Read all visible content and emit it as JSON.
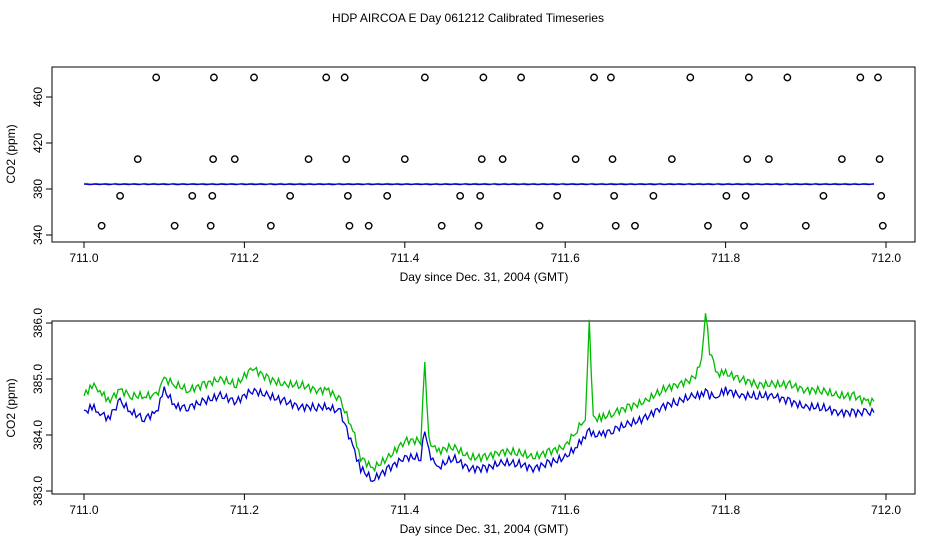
{
  "figure": {
    "title": "HDP AIRCOA E  Day 061212  Calibrated Timeseries"
  },
  "chart_data": [
    {
      "type": "scatter",
      "title": "",
      "xlabel": "Day since Dec. 31, 2004 (GMT)",
      "ylabel": "CO2 (ppm)",
      "xlim": [
        711.0,
        712.0
      ],
      "ylim": [
        340,
        480
      ],
      "x_ticks": [
        "711.0",
        "711.2",
        "711.4",
        "711.6",
        "711.8",
        "712.0"
      ],
      "y_ticks": [
        "340",
        "380",
        "420",
        "460"
      ],
      "grid": false,
      "points": [
        {
          "x": 711.022,
          "y": 348
        },
        {
          "x": 711.045,
          "y": 374
        },
        {
          "x": 711.067,
          "y": 406
        },
        {
          "x": 711.09,
          "y": 477
        },
        {
          "x": 711.113,
          "y": 348
        },
        {
          "x": 711.135,
          "y": 374
        },
        {
          "x": 711.158,
          "y": 348
        },
        {
          "x": 711.16,
          "y": 374
        },
        {
          "x": 711.161,
          "y": 406
        },
        {
          "x": 711.162,
          "y": 477
        },
        {
          "x": 711.188,
          "y": 406
        },
        {
          "x": 711.212,
          "y": 477
        },
        {
          "x": 711.233,
          "y": 348
        },
        {
          "x": 711.257,
          "y": 374
        },
        {
          "x": 711.28,
          "y": 406
        },
        {
          "x": 711.302,
          "y": 477
        },
        {
          "x": 711.325,
          "y": 477
        },
        {
          "x": 711.327,
          "y": 406
        },
        {
          "x": 711.329,
          "y": 374
        },
        {
          "x": 711.331,
          "y": 348
        },
        {
          "x": 711.355,
          "y": 348
        },
        {
          "x": 711.378,
          "y": 374
        },
        {
          "x": 711.4,
          "y": 406
        },
        {
          "x": 711.425,
          "y": 477
        },
        {
          "x": 711.446,
          "y": 348
        },
        {
          "x": 711.469,
          "y": 374
        },
        {
          "x": 711.492,
          "y": 348
        },
        {
          "x": 711.494,
          "y": 374
        },
        {
          "x": 711.496,
          "y": 406
        },
        {
          "x": 711.498,
          "y": 477
        },
        {
          "x": 711.522,
          "y": 406
        },
        {
          "x": 711.545,
          "y": 477
        },
        {
          "x": 711.568,
          "y": 348
        },
        {
          "x": 711.59,
          "y": 374
        },
        {
          "x": 711.613,
          "y": 406
        },
        {
          "x": 711.636,
          "y": 477
        },
        {
          "x": 711.657,
          "y": 477
        },
        {
          "x": 711.659,
          "y": 406
        },
        {
          "x": 711.661,
          "y": 374
        },
        {
          "x": 711.663,
          "y": 348
        },
        {
          "x": 711.687,
          "y": 348
        },
        {
          "x": 711.71,
          "y": 374
        },
        {
          "x": 711.733,
          "y": 406
        },
        {
          "x": 711.756,
          "y": 477
        },
        {
          "x": 711.778,
          "y": 348
        },
        {
          "x": 711.801,
          "y": 374
        },
        {
          "x": 711.823,
          "y": 348
        },
        {
          "x": 711.825,
          "y": 374
        },
        {
          "x": 711.827,
          "y": 406
        },
        {
          "x": 711.829,
          "y": 477
        },
        {
          "x": 711.854,
          "y": 406
        },
        {
          "x": 711.877,
          "y": 477
        },
        {
          "x": 711.9,
          "y": 348
        },
        {
          "x": 711.922,
          "y": 374
        },
        {
          "x": 711.945,
          "y": 406
        },
        {
          "x": 711.968,
          "y": 477
        },
        {
          "x": 711.99,
          "y": 477
        },
        {
          "x": 711.992,
          "y": 406
        },
        {
          "x": 711.994,
          "y": 374
        },
        {
          "x": 711.996,
          "y": 348
        }
      ],
      "series": [
        {
          "color": "#00bb00",
          "values_description": "near 384.5 ppm across the day"
        },
        {
          "color": "#0000cc",
          "values_description": "near 384.0 ppm across the day"
        }
      ],
      "series_level": {
        "green": 384.6,
        "blue": 384.0,
        "x_range": [
          711.0,
          711.985
        ]
      }
    },
    {
      "type": "line",
      "title": "",
      "xlabel": "Day since Dec. 31, 2004 (GMT)",
      "ylabel": "CO2 (ppm)",
      "xlim": [
        711.0,
        712.0
      ],
      "ylim": [
        382.9,
        386.3
      ],
      "x_ticks": [
        "711.0",
        "711.2",
        "711.4",
        "711.6",
        "711.8",
        "712.0"
      ],
      "y_ticks": [
        "383.0",
        "384.0",
        "385.0",
        "386.0"
      ],
      "grid": false,
      "series": [
        {
          "color": "#00bb00",
          "x": [
            711.0,
            711.01,
            711.02,
            711.03,
            711.045,
            711.06,
            711.075,
            711.09,
            711.1,
            711.115,
            711.13,
            711.15,
            711.17,
            711.19,
            711.21,
            711.23,
            711.25,
            711.27,
            711.29,
            711.305,
            711.32,
            711.335,
            711.345,
            711.36,
            711.38,
            711.4,
            711.42,
            711.425,
            711.43,
            711.44,
            711.46,
            711.48,
            711.5,
            711.52,
            711.54,
            711.56,
            711.58,
            711.6,
            711.615,
            711.625,
            711.63,
            711.635,
            711.645,
            711.66,
            711.68,
            711.7,
            711.72,
            711.74,
            711.76,
            711.77,
            711.775,
            711.78,
            711.79,
            711.8,
            711.82,
            711.84,
            711.86,
            711.88,
            711.9,
            711.92,
            711.94,
            711.96,
            711.975,
            711.985
          ],
          "values": [
            384.7,
            384.9,
            384.8,
            384.6,
            384.8,
            384.7,
            384.7,
            384.7,
            385.0,
            384.9,
            384.8,
            384.9,
            385.0,
            384.9,
            385.2,
            385.0,
            384.9,
            384.9,
            384.8,
            384.8,
            384.6,
            384.1,
            383.6,
            383.4,
            383.6,
            383.9,
            383.9,
            385.3,
            383.9,
            383.7,
            383.8,
            383.6,
            383.6,
            383.7,
            383.7,
            383.6,
            383.7,
            383.8,
            384.1,
            384.3,
            386.0,
            384.3,
            384.3,
            384.4,
            384.5,
            384.6,
            384.8,
            384.9,
            385.0,
            385.3,
            386.2,
            385.5,
            385.1,
            385.1,
            385.0,
            384.9,
            384.9,
            384.9,
            384.8,
            384.8,
            384.7,
            384.7,
            384.6,
            384.6
          ]
        },
        {
          "color": "#0000cc",
          "x": [
            711.0,
            711.01,
            711.02,
            711.03,
            711.045,
            711.06,
            711.075,
            711.09,
            711.1,
            711.115,
            711.13,
            711.15,
            711.17,
            711.19,
            711.21,
            711.23,
            711.25,
            711.27,
            711.29,
            711.305,
            711.32,
            711.335,
            711.345,
            711.36,
            711.38,
            711.4,
            711.42,
            711.425,
            711.43,
            711.44,
            711.46,
            711.48,
            711.5,
            711.52,
            711.54,
            711.56,
            711.58,
            711.6,
            711.615,
            711.625,
            711.63,
            711.635,
            711.645,
            711.66,
            711.68,
            711.7,
            711.72,
            711.74,
            711.76,
            711.77,
            711.775,
            711.78,
            711.79,
            711.8,
            711.82,
            711.84,
            711.86,
            711.88,
            711.9,
            711.92,
            711.94,
            711.96,
            711.975,
            711.985
          ],
          "values": [
            384.4,
            384.5,
            384.4,
            384.3,
            384.6,
            384.4,
            384.3,
            384.4,
            384.8,
            384.5,
            384.5,
            384.6,
            384.7,
            384.6,
            384.8,
            384.7,
            384.6,
            384.5,
            384.5,
            384.5,
            384.4,
            383.8,
            383.4,
            383.2,
            383.4,
            383.6,
            383.6,
            384.1,
            383.7,
            383.4,
            383.6,
            383.4,
            383.4,
            383.5,
            383.5,
            383.4,
            383.5,
            383.6,
            383.8,
            384.0,
            384.1,
            384.0,
            384.0,
            384.1,
            384.2,
            384.3,
            384.5,
            384.6,
            384.7,
            384.7,
            384.8,
            384.7,
            384.7,
            384.8,
            384.7,
            384.7,
            384.7,
            384.6,
            384.5,
            384.5,
            384.4,
            384.4,
            384.4,
            384.4
          ]
        }
      ]
    }
  ]
}
